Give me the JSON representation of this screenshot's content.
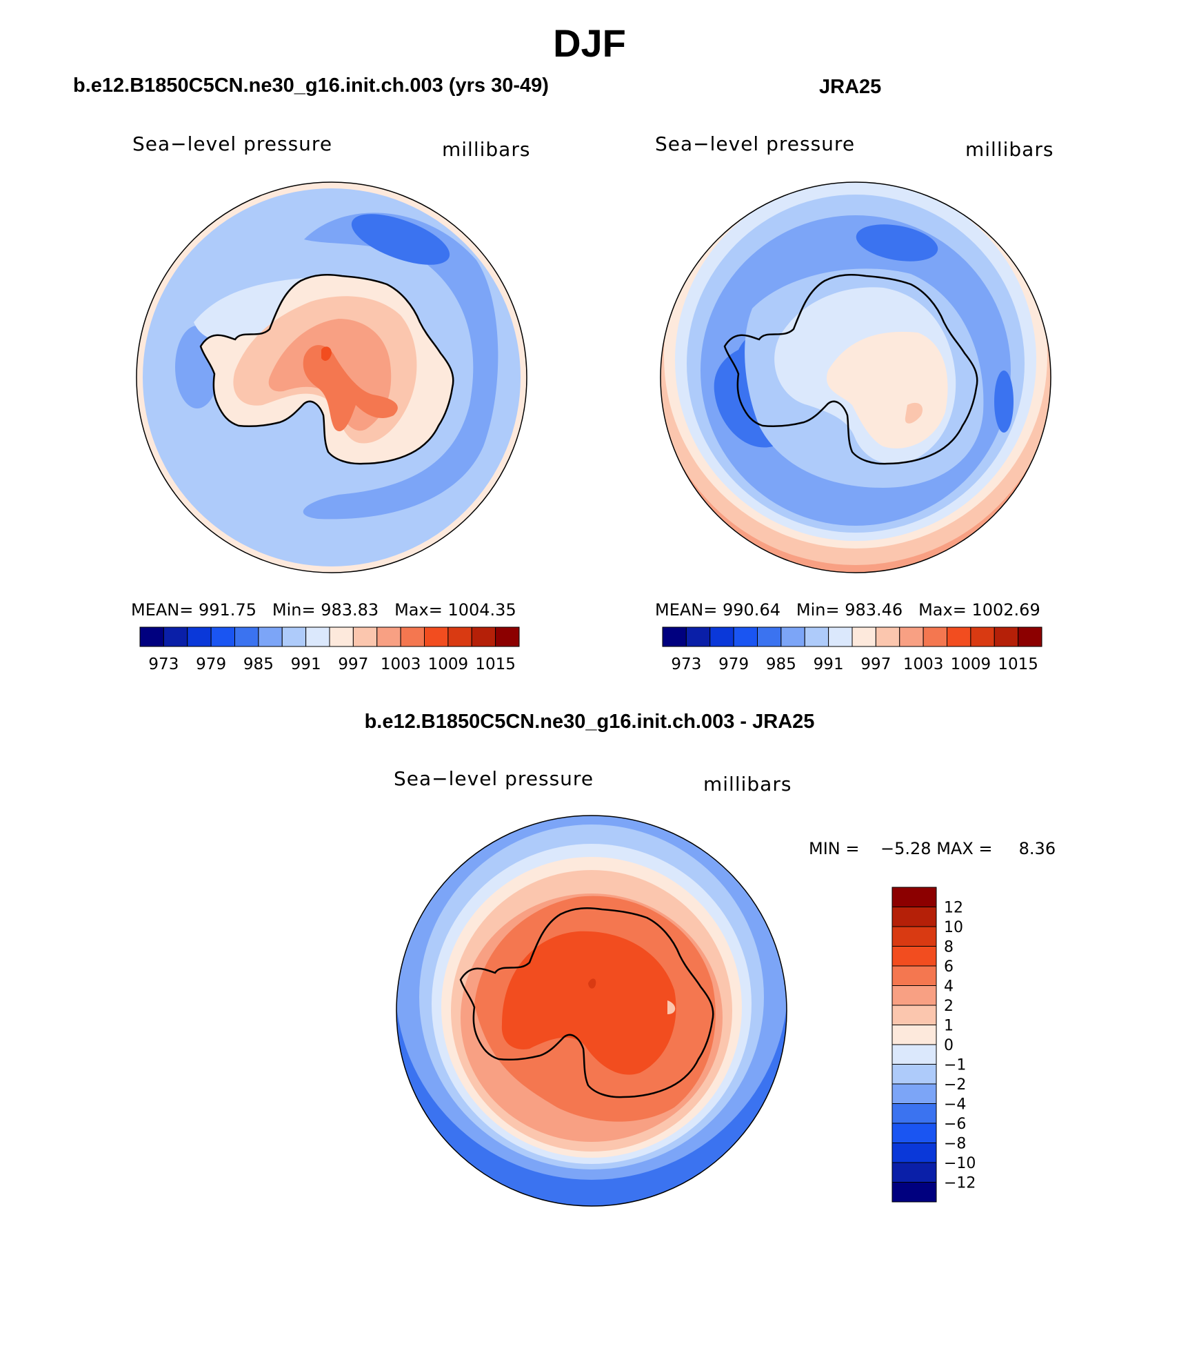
{
  "figure": {
    "title": "DJF",
    "panels": [
      {
        "id": "model",
        "subtitle": "b.e12.B1850C5CN.ne30_g16.init.ch.003 (yrs 30-49)",
        "left_label": "Sea−level pressure",
        "right_label": "millibars",
        "stats": {
          "mean_label": "MEAN=",
          "mean": "991.75",
          "min_label": "Min=",
          "min": "983.83",
          "max_label": "Max=",
          "max": "1004.35"
        }
      },
      {
        "id": "obs",
        "subtitle": "JRA25",
        "left_label": "Sea−level pressure",
        "right_label": "millibars",
        "stats": {
          "mean_label": "MEAN=",
          "mean": "990.64",
          "min_label": "Min=",
          "min": "983.46",
          "max_label": "Max=",
          "max": "1002.69"
        }
      },
      {
        "id": "diff",
        "subtitle": "b.e12.B1850C5CN.ne30_g16.init.ch.003 - JRA25",
        "left_label": "Sea−level pressure",
        "right_label": "millibars",
        "stats": {
          "min_label": "MIN =",
          "min": "−5.28",
          "max_label": "MAX =",
          "max": "8.36"
        }
      }
    ]
  },
  "colorbars": {
    "absolute": {
      "colors": [
        "#00007f",
        "#0a1fa8",
        "#0a38d9",
        "#1a55f2",
        "#3b73f0",
        "#7ca5f7",
        "#aecbfa",
        "#dbe8fc",
        "#fde9dc",
        "#fbc6ae",
        "#f8a083",
        "#f47750",
        "#f24d1f",
        "#d93a12",
        "#b52008",
        "#8c0000"
      ],
      "tick_labels": [
        "973",
        "979",
        "985",
        "991",
        "997",
        "1003",
        "1009",
        "1015"
      ]
    },
    "difference": {
      "colors": [
        "#00007f",
        "#0a1fa8",
        "#0a38d9",
        "#1a55f2",
        "#3b73f0",
        "#7ca5f7",
        "#aecbfa",
        "#dbe8fc",
        "#fde9dc",
        "#fbc6ae",
        "#f8a083",
        "#f47750",
        "#f24d1f",
        "#d93a12",
        "#b52008",
        "#8c0000"
      ],
      "tick_labels": [
        "−12",
        "−10",
        "−8",
        "−6",
        "−4",
        "−2",
        "−1",
        "0",
        "1",
        "2",
        "4",
        "6",
        "8",
        "10",
        "12"
      ]
    }
  }
}
